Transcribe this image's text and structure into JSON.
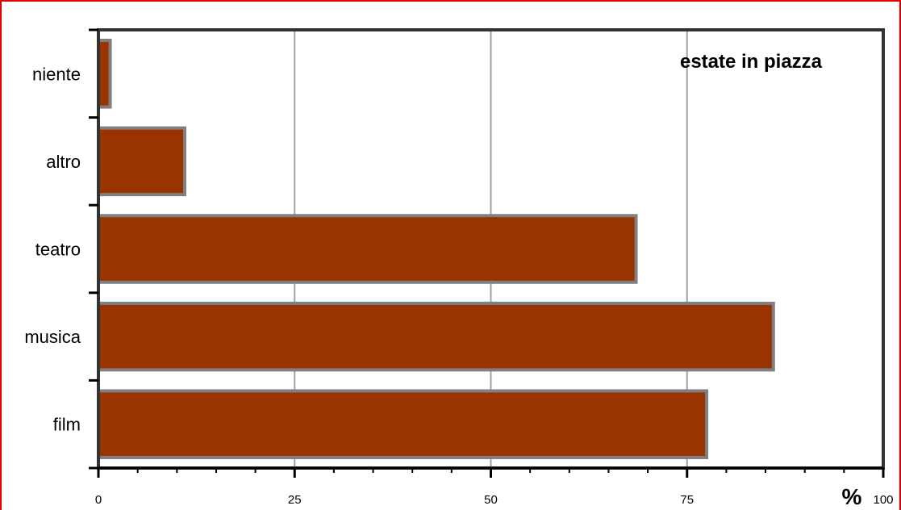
{
  "chart_data": {
    "type": "bar",
    "orientation": "horizontal",
    "title": "estate in piazza",
    "categories": [
      "niente",
      "altro",
      "teatro",
      "musica",
      "film"
    ],
    "values": [
      1.5,
      11,
      68.5,
      86,
      77.5
    ],
    "xlim": [
      0,
      100
    ],
    "x_ticks": [
      "0",
      "25",
      "50",
      "75",
      "100"
    ],
    "x_unit": "%",
    "grid": "vertical",
    "bar_color": "#993300",
    "bar_edge_color": "#808080",
    "grid_color": "#a0a0a0",
    "frame_color": "#e00000"
  }
}
